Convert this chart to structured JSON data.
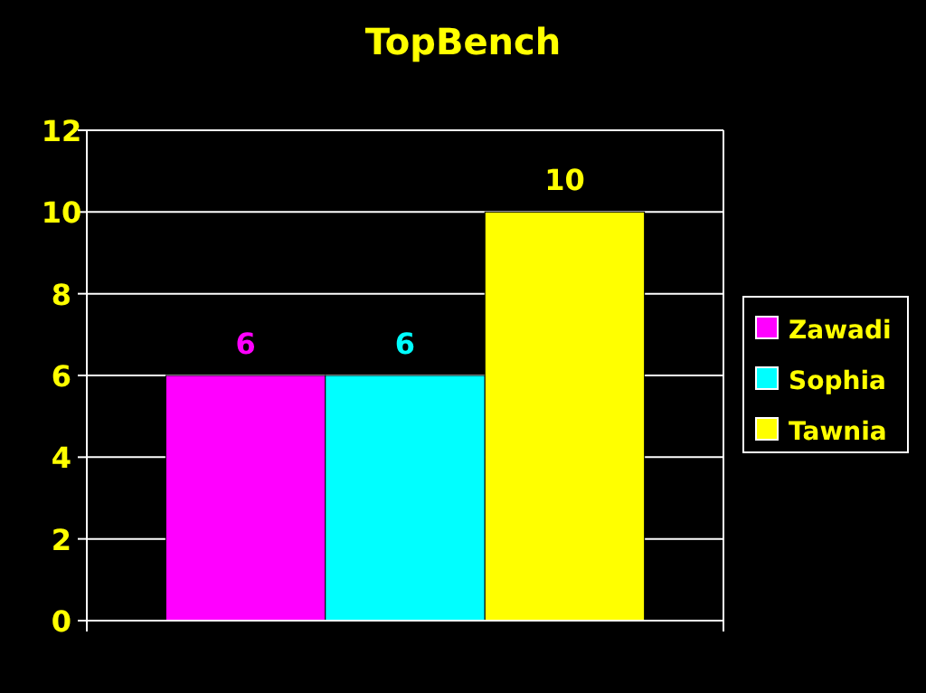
{
  "chart_data": {
    "type": "bar",
    "title": "TopBench",
    "categories": [
      null
    ],
    "series": [
      {
        "name": "Zawadi",
        "color": "#ff00ff",
        "values": [
          6
        ]
      },
      {
        "name": "Sophia",
        "color": "#00ffff",
        "values": [
          6
        ]
      },
      {
        "name": "Tawnia",
        "color": "#ffff00",
        "values": [
          10
        ]
      }
    ],
    "ylim": [
      0,
      12
    ],
    "yticks": [
      0,
      2,
      4,
      6,
      8,
      10,
      12
    ],
    "grid": "y",
    "legend": "right",
    "data_labels": true
  }
}
